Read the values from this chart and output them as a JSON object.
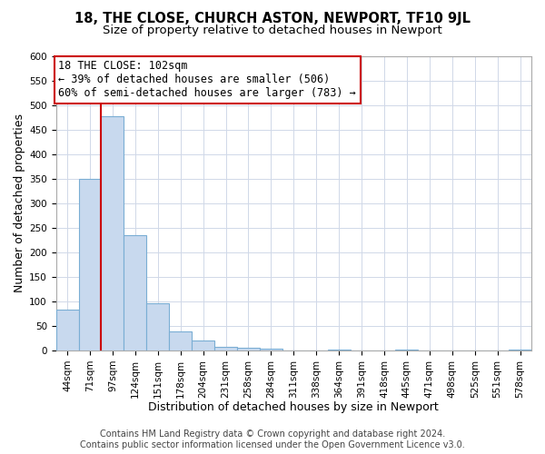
{
  "title": "18, THE CLOSE, CHURCH ASTON, NEWPORT, TF10 9JL",
  "subtitle": "Size of property relative to detached houses in Newport",
  "xlabel": "Distribution of detached houses by size in Newport",
  "ylabel": "Number of detached properties",
  "bar_labels": [
    "44sqm",
    "71sqm",
    "97sqm",
    "124sqm",
    "151sqm",
    "178sqm",
    "204sqm",
    "231sqm",
    "258sqm",
    "284sqm",
    "311sqm",
    "338sqm",
    "364sqm",
    "391sqm",
    "418sqm",
    "445sqm",
    "471sqm",
    "498sqm",
    "525sqm",
    "551sqm",
    "578sqm"
  ],
  "bar_values": [
    84,
    350,
    477,
    235,
    97,
    38,
    20,
    8,
    5,
    4,
    0,
    0,
    2,
    0,
    0,
    2,
    0,
    0,
    0,
    0,
    2
  ],
  "bar_color": "#c8d9ee",
  "bar_edgecolor": "#7aaed4",
  "highlight_line_color": "#cc0000",
  "highlight_line_index": 2,
  "ylim": [
    0,
    600
  ],
  "yticks": [
    0,
    50,
    100,
    150,
    200,
    250,
    300,
    350,
    400,
    450,
    500,
    550,
    600
  ],
  "annotation_title": "18 THE CLOSE: 102sqm",
  "annotation_line1": "← 39% of detached houses are smaller (506)",
  "annotation_line2": "60% of semi-detached houses are larger (783) →",
  "annotation_box_facecolor": "#ffffff",
  "annotation_box_edgecolor": "#cc0000",
  "footer_line1": "Contains HM Land Registry data © Crown copyright and database right 2024.",
  "footer_line2": "Contains public sector information licensed under the Open Government Licence v3.0.",
  "title_fontsize": 10.5,
  "subtitle_fontsize": 9.5,
  "xlabel_fontsize": 9,
  "ylabel_fontsize": 9,
  "tick_fontsize": 7.5,
  "annotation_fontsize": 8.5,
  "footer_fontsize": 7,
  "grid_color": "#d0d8e8"
}
